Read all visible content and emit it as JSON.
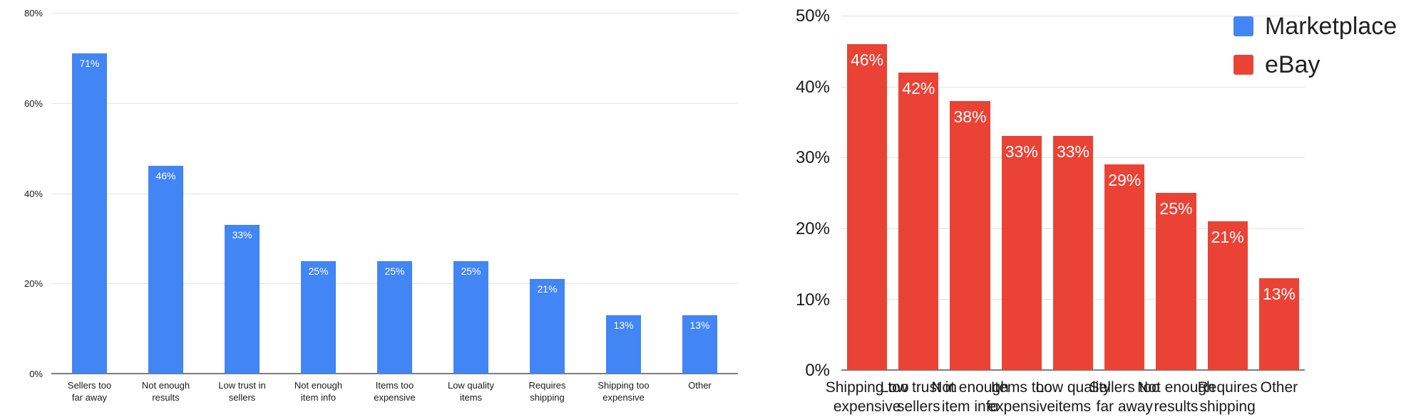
{
  "legend": {
    "position": "top-right",
    "items": [
      {
        "label": "Marketplace",
        "color": "#4285F4"
      },
      {
        "label": "eBay",
        "color": "#EA4335"
      }
    ]
  },
  "chart_data": [
    {
      "type": "bar",
      "series": [
        {
          "name": "Marketplace",
          "values": [
            71,
            46,
            33,
            25,
            25,
            25,
            21,
            13,
            13
          ]
        }
      ],
      "categories": [
        "Sellers too far away",
        "Not enough results",
        "Low trust in sellers",
        "Not enough item info",
        "Items too expensive",
        "Low quality items",
        "Requires shipping",
        "Shipping too expensive",
        "Other"
      ],
      "category_labels": [
        "Sellers too\nfar away",
        "Not enough\nresults",
        "Low trust in\nsellers",
        "Not enough\nitem info",
        "Items too\nexpensive",
        "Low quality\nitems",
        "Requires\nshipping",
        "Shipping too\nexpensive",
        "Other"
      ],
      "value_labels": [
        "71%",
        "46%",
        "33%",
        "25%",
        "25%",
        "25%",
        "21%",
        "13%",
        "13%"
      ],
      "bar_color": "#4285F4",
      "ylim": [
        0,
        80
      ],
      "yticks": [
        0,
        20,
        40,
        60,
        80
      ],
      "ytick_labels": [
        "0%",
        "20%",
        "40%",
        "60%",
        "80%"
      ],
      "grid": true
    },
    {
      "type": "bar",
      "series": [
        {
          "name": "eBay",
          "values": [
            46,
            42,
            38,
            33,
            33,
            29,
            25,
            21,
            13
          ]
        }
      ],
      "categories": [
        "Shipping too expensive",
        "Low trust in sellers",
        "Not enough item info",
        "Items too expensive",
        "Low quality items",
        "Sellers too far away",
        "Not enough results",
        "Requires shipping",
        "Other"
      ],
      "category_labels": [
        "Shipping too\nexpensive",
        "Low trust in\nsellers",
        "Not enough\nitem info",
        "Items too\nexpensive",
        "Low quality\nitems",
        "Sellers too\nfar away",
        "Not enough\nresults",
        "Requires\nshipping",
        "Other"
      ],
      "value_labels": [
        "46%",
        "42%",
        "38%",
        "33%",
        "33%",
        "29%",
        "25%",
        "21%",
        "13%"
      ],
      "bar_color": "#EA4335",
      "ylim": [
        0,
        50
      ],
      "yticks": [
        0,
        10,
        20,
        30,
        40,
        50
      ],
      "ytick_labels": [
        "0%",
        "10%",
        "20%",
        "30%",
        "40%",
        "50%"
      ],
      "grid": true
    }
  ]
}
